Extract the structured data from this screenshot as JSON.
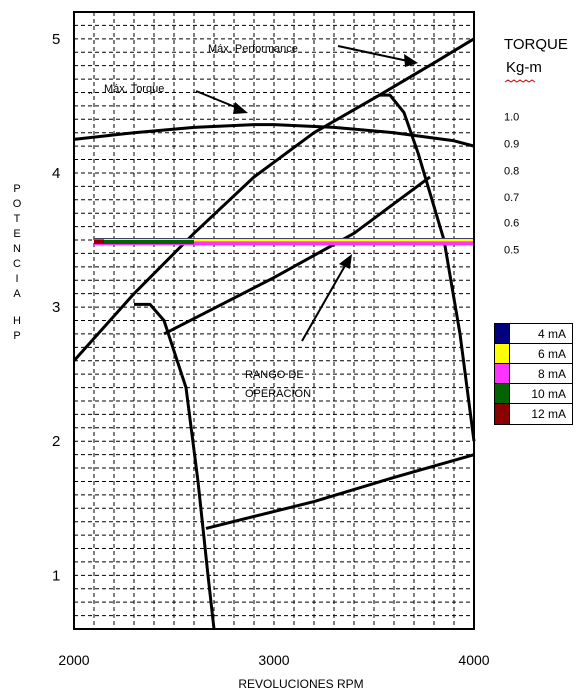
{
  "chart_data": {
    "type": "line",
    "xlabel": "REVOLUCIONES RPM",
    "ylabel": "POTENCIA HP",
    "xlim": [
      2000,
      4000
    ],
    "ylim": [
      0.6,
      5.2
    ],
    "x_ticks": [
      "2000",
      "3000",
      "4000"
    ],
    "y_ticks": [
      "1",
      "2",
      "3",
      "4",
      "5"
    ],
    "grid": true,
    "right_axis": {
      "title_line1": "TORQUE",
      "title_line2": "Kg-m",
      "ticks": [
        "1.0",
        "0.9",
        "0.8",
        "0.7",
        "0.6",
        "0.5"
      ],
      "tick_positions_hp": [
        4.42,
        4.22,
        4.02,
        3.82,
        3.63,
        3.43
      ]
    },
    "curves": [
      {
        "x": [
          2000,
          2300,
          2600,
          2900,
          3000,
          3300,
          3600,
          3900,
          4000
        ],
        "y": [
          4.25,
          4.3,
          4.34,
          4.36,
          4.36,
          4.34,
          4.3,
          4.24,
          4.2
        ]
      },
      {
        "x": [
          2000,
          2300,
          2600,
          2900,
          3200,
          3550,
          3800,
          4000
        ],
        "y": [
          2.6,
          3.1,
          3.55,
          3.97,
          4.3,
          4.6,
          4.82,
          5.0
        ]
      },
      {
        "x": [
          2300,
          2380,
          2450,
          2560,
          2620,
          2670,
          2700
        ],
        "y": [
          3.02,
          3.02,
          2.9,
          2.4,
          1.7,
          1.0,
          0.6
        ]
      },
      {
        "x": [
          3520,
          3580,
          3650,
          3720,
          3780,
          3850,
          3930,
          4000
        ],
        "y": [
          4.58,
          4.58,
          4.45,
          4.15,
          3.85,
          3.5,
          2.8,
          2.0
        ]
      },
      {
        "x": [
          2450,
          3000,
          3400,
          3780
        ],
        "y": [
          2.8,
          3.22,
          3.55,
          3.97
        ]
      },
      {
        "x": [
          2660,
          3200,
          3600,
          4000
        ],
        "y": [
          1.35,
          1.55,
          1.73,
          1.9
        ]
      }
    ],
    "series": [
      {
        "name": "4 mA",
        "color": "#000080",
        "x": [
          2100,
          4000
        ],
        "y": [
          3.5,
          3.5
        ]
      },
      {
        "name": "6 mA",
        "color": "#ffff00",
        "x": [
          2100,
          4000
        ],
        "y": [
          3.495,
          3.495
        ]
      },
      {
        "name": "8 mA",
        "color": "#ff33ff",
        "x": [
          2100,
          4000
        ],
        "y": [
          3.475,
          3.475
        ]
      },
      {
        "name": "10 mA",
        "color": "#006400",
        "x": [
          2100,
          2600
        ],
        "y": [
          3.485,
          3.485
        ]
      },
      {
        "name": "12 mA",
        "color": "#8b0000",
        "x": [
          2100,
          2150
        ],
        "y": [
          3.49,
          3.49
        ]
      }
    ],
    "annotations": {
      "max_performance": "Máx. Performance",
      "max_torque": "Máx. Torque",
      "range_line1": "RANGO DE",
      "range_line2": "OPERACION",
      "corner_mark": ".."
    }
  }
}
